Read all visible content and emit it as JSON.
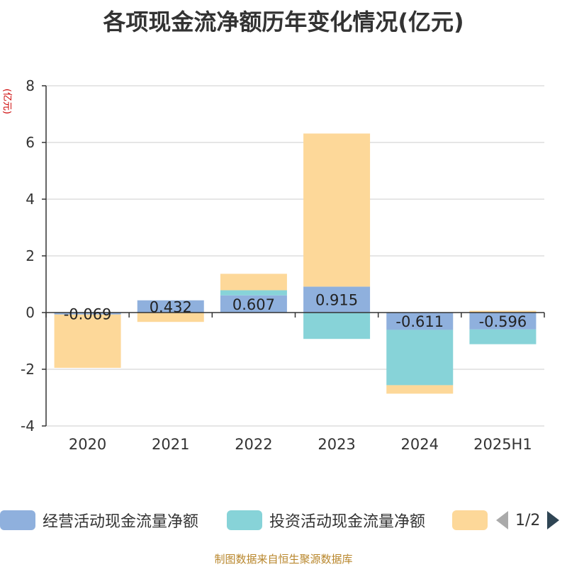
{
  "chart_data": {
    "type": "bar",
    "stacked": true,
    "title": "各项现金流净额历年变化情况(亿元)",
    "ylabel": "(亿元)",
    "ylim": [
      -4,
      8
    ],
    "yticks": [
      -4,
      -2,
      0,
      2,
      4,
      6,
      8
    ],
    "grid": true,
    "legend_position": "bottom",
    "categories": [
      "2020",
      "2021",
      "2022",
      "2023",
      "2024",
      "2025H1"
    ],
    "series": [
      {
        "name": "经营活动现金流量净额",
        "color": "#8fb0dd",
        "values": [
          -0.069,
          0.432,
          0.607,
          0.915,
          -0.611,
          -0.596
        ]
      },
      {
        "name": "投资活动现金流量净额",
        "color": "#87d3d8",
        "values": [
          0.0,
          0.0,
          0.18,
          -0.93,
          -1.95,
          -0.52
        ]
      },
      {
        "name": "",
        "color": "#fdd899",
        "values": [
          -1.88,
          -0.33,
          0.58,
          5.4,
          -0.3,
          0.06
        ]
      }
    ],
    "data_labels": [
      "-0.069",
      "0.432",
      "0.607",
      "0.915",
      "-0.611",
      "-0.596"
    ]
  },
  "legend": {
    "page_label": "1/2"
  },
  "source_note": "制图数据来自恒生聚源数据库"
}
